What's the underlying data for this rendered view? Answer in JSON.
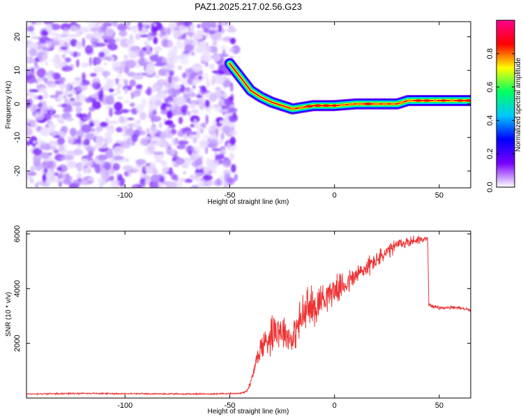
{
  "chart_data": [
    {
      "type": "heatmap",
      "title": "PAZ1.2025.217.02.56.G23",
      "xlabel": "Height of straight line (km)",
      "ylabel": "Frequency (Hz)",
      "xlim": [
        -147,
        65
      ],
      "ylim": [
        -25,
        24.5
      ],
      "x_ticks": [
        -100,
        -50,
        0,
        50
      ],
      "y_ticks": [
        -20,
        -10,
        0,
        10,
        20
      ],
      "grid": false,
      "noise_region_x": [
        -147,
        -47
      ],
      "signal_ridge": {
        "x": [
          -50,
          -45,
          -40,
          -35,
          -30,
          -25,
          -20,
          -15,
          -10,
          -5,
          0,
          10,
          20,
          30,
          35,
          40,
          50,
          65
        ],
        "y": [
          12,
          8,
          4,
          2,
          0.5,
          -0.5,
          -1.5,
          -1,
          -0.5,
          -0.5,
          -0.5,
          0,
          0,
          0,
          1,
          1,
          1,
          1
        ]
      },
      "colorbar": {
        "label": "Normalized spectral amplitude",
        "range": [
          0,
          1
        ],
        "ticks": [
          0.0,
          0.2,
          0.4,
          0.6,
          0.8
        ],
        "tick_labels": [
          "0.0",
          "0.2",
          "0.4",
          "0.6",
          "0.8"
        ],
        "colormap": [
          "#ffffff",
          "#7a00ff",
          "#0000ff",
          "#00c8ff",
          "#00ff60",
          "#ffff00",
          "#ff0000",
          "#ff0090"
        ]
      }
    },
    {
      "type": "line",
      "title": "",
      "xlabel": "Height of straight line (km)",
      "ylabel": "SNR (10 * v/v)",
      "xlim": [
        -147,
        65
      ],
      "ylim": [
        0,
        6100
      ],
      "x_ticks": [
        -100,
        -50,
        0,
        50
      ],
      "y_ticks": [
        2000,
        4000,
        6000
      ],
      "grid": false,
      "series": [
        {
          "color": "#ee3333",
          "x": [
            -147,
            -120,
            -100,
            -80,
            -60,
            -45,
            -42,
            -40,
            -38,
            -36,
            -34,
            -32,
            -30,
            -28,
            -26,
            -24,
            -22,
            -20,
            -18,
            -15,
            -12,
            -10,
            -8,
            -5,
            0,
            5,
            10,
            15,
            20,
            25,
            30,
            35,
            40,
            44.5,
            45,
            50,
            55,
            60,
            65
          ],
          "y": [
            150,
            170,
            160,
            150,
            150,
            170,
            250,
            550,
            1150,
            1700,
            1950,
            2150,
            2400,
            2600,
            2500,
            2450,
            2250,
            2150,
            2550,
            3000,
            3350,
            3250,
            3500,
            3700,
            3950,
            4150,
            4450,
            4750,
            5050,
            5300,
            5600,
            5700,
            5800,
            5800,
            3400,
            3300,
            3300,
            3300,
            3200
          ],
          "noise_amplitude": [
            30,
            30,
            30,
            30,
            30,
            30,
            60,
            150,
            300,
            500,
            700,
            800,
            900,
            900,
            800,
            750,
            700,
            600,
            800,
            1100,
            1000,
            900,
            800,
            700,
            600,
            550,
            500,
            450,
            400,
            350,
            300,
            250,
            200,
            150,
            80,
            70,
            70,
            70,
            70
          ]
        }
      ]
    }
  ]
}
